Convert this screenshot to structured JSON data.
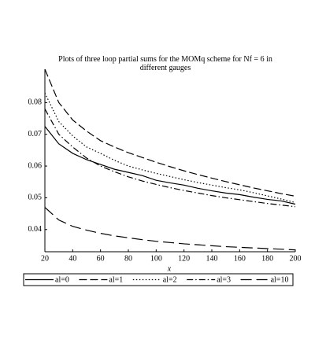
{
  "chart_data": {
    "type": "line",
    "title": "Plots of three loop partial sums for the MOMq scheme for Nf = 6 in different gauges",
    "xlabel": "x",
    "x": [
      20,
      30,
      40,
      50,
      60,
      70,
      80,
      90,
      100,
      110,
      120,
      130,
      140,
      150,
      160,
      170,
      180,
      190,
      200
    ],
    "series": [
      {
        "name": "al=0",
        "color": "#000000",
        "style": "solid",
        "values": [
          0.0725,
          0.067,
          0.064,
          0.062,
          0.0605,
          0.059,
          0.058,
          0.057,
          0.0555,
          0.0547,
          0.054,
          0.053,
          0.0522,
          0.0515,
          0.051,
          0.0502,
          0.0495,
          0.049,
          0.048
        ]
      },
      {
        "name": "al=1",
        "color": "#000000",
        "style": "dashed",
        "values": [
          0.0905,
          0.08,
          0.0745,
          0.071,
          0.068,
          0.066,
          0.0642,
          0.0627,
          0.0612,
          0.0598,
          0.0585,
          0.0573,
          0.0562,
          0.0551,
          0.0541,
          0.0531,
          0.0522,
          0.0513,
          0.0505
        ]
      },
      {
        "name": "al=2",
        "color": "#000000",
        "style": "dotted",
        "values": [
          0.083,
          0.074,
          0.0695,
          0.066,
          0.064,
          0.0618,
          0.06,
          0.0588,
          0.0577,
          0.0567,
          0.0557,
          0.0548,
          0.054,
          0.0532,
          0.0525,
          0.0516,
          0.0506,
          0.0496,
          0.0485
        ]
      },
      {
        "name": "al=3",
        "color": "#000000",
        "style": "dashdot",
        "values": [
          0.078,
          0.07,
          0.066,
          0.0625,
          0.06,
          0.0582,
          0.0566,
          0.0553,
          0.0542,
          0.0532,
          0.0523,
          0.0515,
          0.0507,
          0.05,
          0.0494,
          0.0488,
          0.0482,
          0.0477,
          0.0472
        ]
      },
      {
        "name": "al=10",
        "color": "#000000",
        "style": "longdash",
        "values": [
          0.047,
          0.043,
          0.041,
          0.0398,
          0.0388,
          0.038,
          0.0374,
          0.0368,
          0.0363,
          0.0359,
          0.0355,
          0.0352,
          0.0349,
          0.0346,
          0.0344,
          0.0342,
          0.034,
          0.0338,
          0.0336
        ]
      }
    ],
    "xlim": [
      20,
      200
    ],
    "xticks": [
      20,
      40,
      60,
      80,
      100,
      120,
      140,
      160,
      180,
      200
    ],
    "ylim": [
      0.0335,
      0.0905
    ],
    "yticks": [
      0.04,
      0.05,
      0.06,
      0.07,
      0.08
    ],
    "grid": false
  }
}
